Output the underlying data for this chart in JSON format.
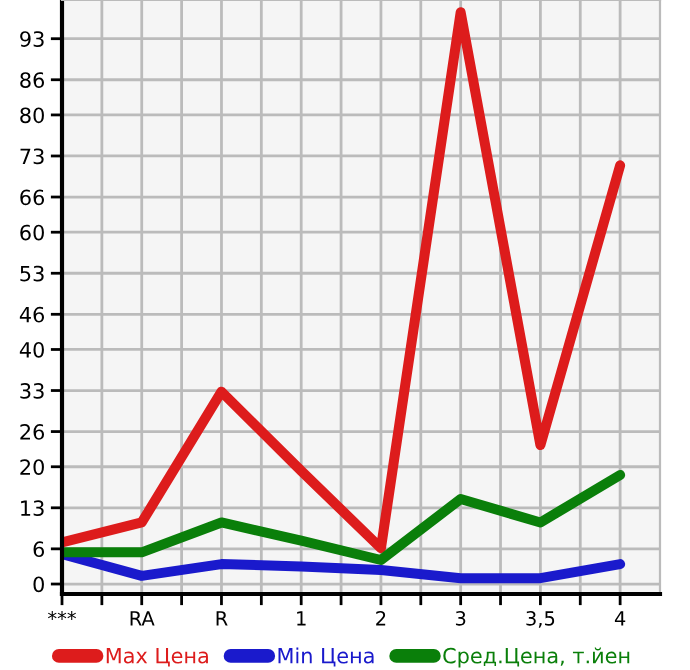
{
  "chart_data": {
    "type": "line",
    "categories": [
      "***",
      "RA",
      "R",
      "1",
      "2",
      "3",
      "3,5",
      "4"
    ],
    "series": [
      {
        "name": "Max Цена",
        "color": "#dd1c1c",
        "values": [
          7.1,
          10.5,
          32.8,
          19.3,
          6.1,
          97.5,
          23.7,
          71.4
        ]
      },
      {
        "name": "Min Цена",
        "color": "#1a1acc",
        "values": [
          5.1,
          1.4,
          3.4,
          3.0,
          2.4,
          1.0,
          1.0,
          3.4
        ]
      },
      {
        "name": "Сред.Цена, т.йен",
        "color": "#0a7f0a",
        "values": [
          5.4,
          5.4,
          10.5,
          7.4,
          4.1,
          14.5,
          10.5,
          18.6
        ]
      }
    ],
    "ylim": [
      -1.7,
      99.6
    ],
    "yticks": [
      0,
      6,
      13,
      20,
      26,
      33,
      40,
      46,
      53,
      60,
      66,
      73,
      80,
      86,
      93
    ],
    "grid": true,
    "legend": "bottom",
    "marker": "none",
    "line_style": "solid"
  }
}
